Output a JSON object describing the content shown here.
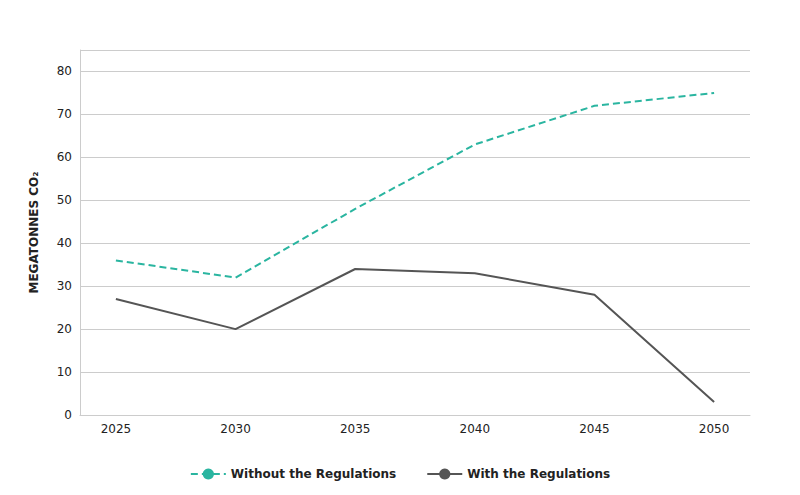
{
  "chart_data": {
    "type": "line",
    "ylabel": "MEGATONNES CO₂",
    "x": [
      2025,
      2030,
      2035,
      2040,
      2045,
      2050
    ],
    "series": [
      {
        "name": "Without the Regulations",
        "color": "#2ab5a0",
        "line_style": "dashed",
        "values": [
          36,
          32,
          48,
          63,
          72,
          75
        ]
      },
      {
        "name": "With the Regulations",
        "color": "#555555",
        "line_style": "solid",
        "values": [
          27,
          20,
          34,
          33,
          28,
          3
        ]
      }
    ],
    "xlim": [
      2023.5,
      2051.5
    ],
    "xticks": [
      2025,
      2030,
      2035,
      2040,
      2045,
      2050
    ],
    "ylim": [
      0,
      85
    ],
    "yticks": [
      0,
      10,
      20,
      30,
      40,
      50,
      60,
      70,
      80
    ],
    "grid": "y",
    "legend": "bottom"
  }
}
